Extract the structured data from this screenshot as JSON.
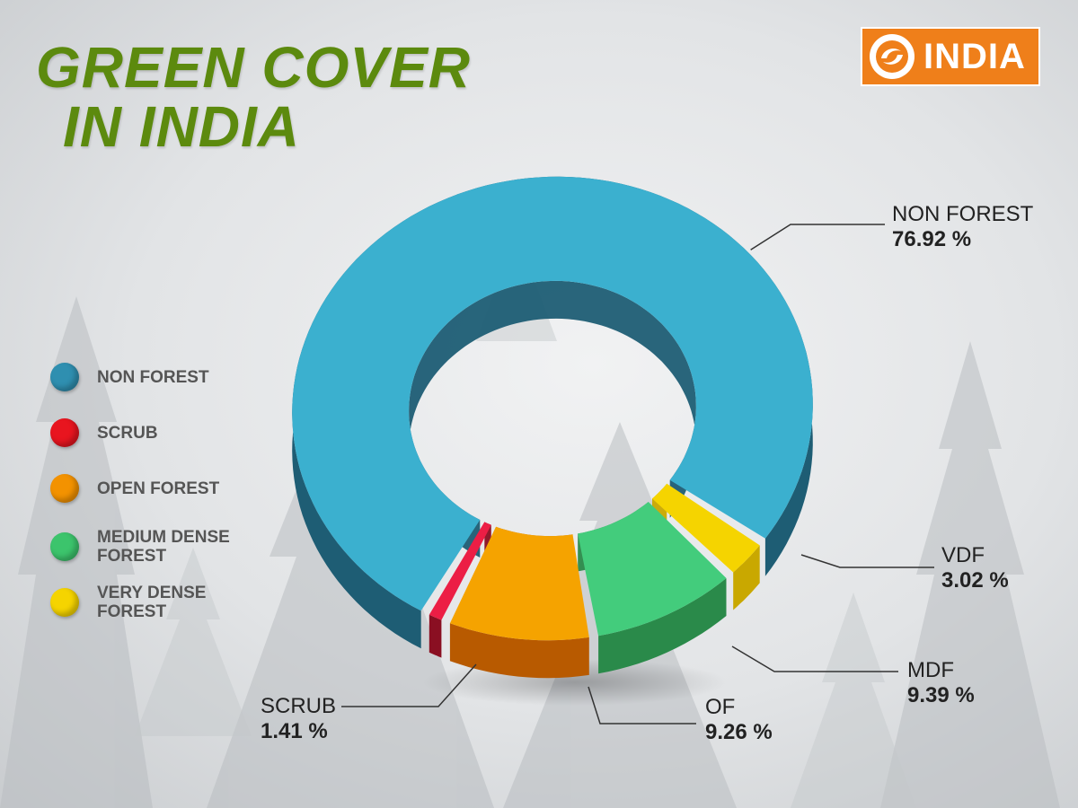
{
  "title": {
    "line1": "GREEN COVER",
    "line2": "IN INDIA"
  },
  "logo": {
    "text": "INDIA",
    "icon": "dd-logo-icon",
    "color": "#ef7f1a"
  },
  "legend": [
    {
      "label": "NON FOREST",
      "color": "#2f8fb0"
    },
    {
      "label": "SCRUB",
      "color": "#e8151f"
    },
    {
      "label": "OPEN FOREST",
      "color": "#f39200"
    },
    {
      "label": "MEDIUM DENSE FOREST",
      "color": "#3cc46c"
    },
    {
      "label": "VERY DENSE FOREST",
      "color": "#f5d400"
    }
  ],
  "chart_data": {
    "type": "pie",
    "title": "GREEN COVER IN INDIA",
    "series": [
      {
        "name": "NON FOREST",
        "label": "NON FOREST",
        "value": 76.92,
        "value_text": "76.92 %",
        "color": "#3bb0cf",
        "side": "#1e5d74"
      },
      {
        "name": "VERY DENSE FOREST",
        "label": "VDF",
        "value": 3.02,
        "value_text": "3.02 %",
        "color": "#f5d400",
        "side": "#c9a800"
      },
      {
        "name": "MEDIUM DENSE FOREST",
        "label": "MDF",
        "value": 9.39,
        "value_text": "9.39 %",
        "color": "#43cc7c",
        "side": "#2a8a4a"
      },
      {
        "name": "OPEN FOREST",
        "label": "OF",
        "value": 9.26,
        "value_text": "9.26 %",
        "color": "#f5a300",
        "side": "#b85a00"
      },
      {
        "name": "SCRUB",
        "label": "SCRUB",
        "value": 1.41,
        "value_text": "1.41 %",
        "color": "#ec1e45",
        "side": "#8a0f22"
      }
    ],
    "unit": "%",
    "legend_position": "left"
  }
}
